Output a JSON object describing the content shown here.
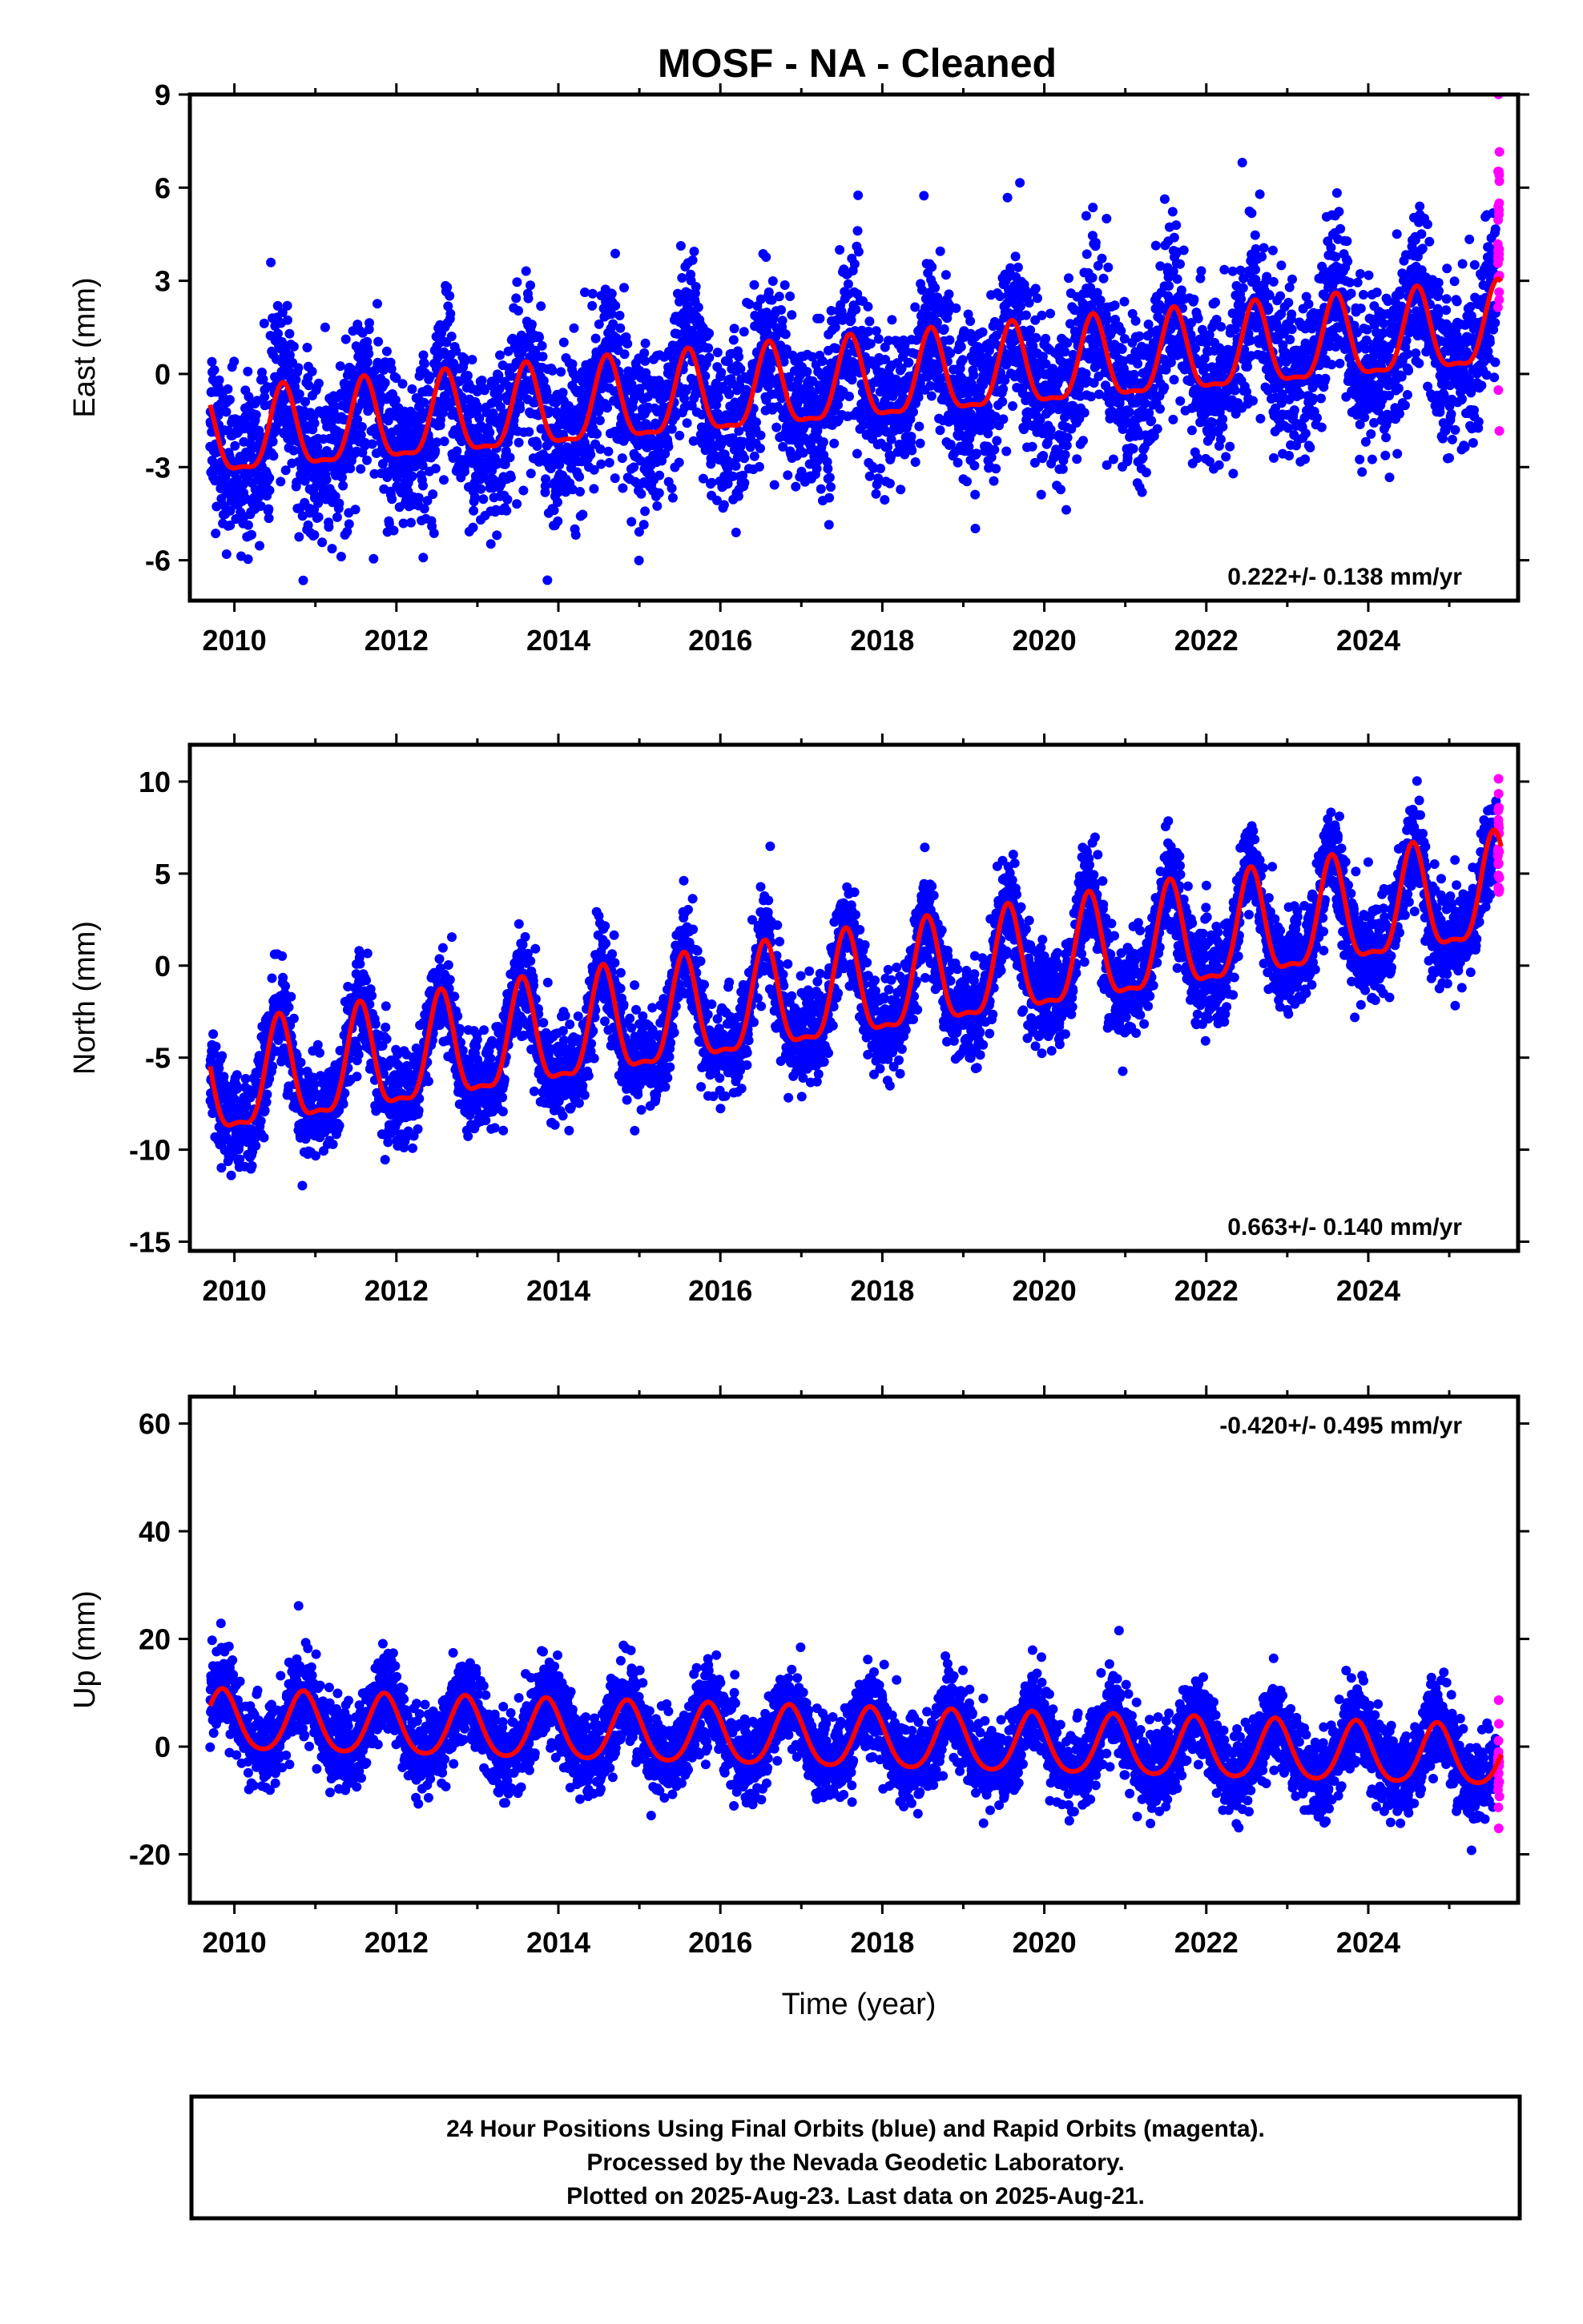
{
  "title": "MOSF  - NA - Cleaned",
  "x_axis_label": "Time (year)",
  "x_ticks": [
    "2010",
    "2012",
    "2014",
    "2016",
    "2018",
    "2020",
    "2022",
    "2024"
  ],
  "footer": {
    "line1": "24 Hour Positions Using Final Orbits (blue) and Rapid Orbits (magenta).",
    "line2": "Processed by the Nevada Geodetic Laboratory.",
    "line3": "Plotted on 2025-Aug-23. Last data on 2025-Aug-21."
  },
  "colors": {
    "final": "#0000ff",
    "rapid": "#ff00ff",
    "model": "#ff0000"
  },
  "chart_data": [
    {
      "type": "scatter",
      "ylabel": "East (mm)",
      "ylim": [
        -7.3,
        9.0
      ],
      "xlim": [
        2009.45,
        2025.85
      ],
      "y_ticks": [
        "9",
        "6",
        "3",
        "0",
        "-3",
        "-6"
      ],
      "y_tick_values": [
        9,
        6,
        3,
        0,
        -3,
        -6
      ],
      "rate_text": "0.222+/- 0.138 mm/yr",
      "data_start": 2009.7,
      "data_end": 2025.64,
      "model": {
        "trend": 0.222,
        "intercept_2017": -0.55,
        "annual_amp": 1.3,
        "annual_peak": 0.6,
        "semiannual_amp": 0.4,
        "noise_sd": 1.3
      },
      "series": [
        {
          "name": "Final Orbits"
        },
        {
          "name": "Rapid Orbits"
        }
      ]
    },
    {
      "type": "scatter",
      "ylabel": "North (mm)",
      "ylim": [
        -15.5,
        12.0
      ],
      "xlim": [
        2009.45,
        2025.85
      ],
      "y_ticks": [
        "10",
        "5",
        "0",
        "-5",
        "-10",
        "-15"
      ],
      "y_tick_values": [
        10,
        5,
        0,
        -5,
        -10,
        -15
      ],
      "rate_text": "0.663+/- 0.140 mm/yr",
      "data_start": 2009.7,
      "data_end": 2025.64,
      "model": {
        "trend": 0.663,
        "intercept_2017": -2.0,
        "annual_amp": 2.8,
        "annual_peak": 0.55,
        "semiannual_amp": 0.9,
        "noise_sd": 1.3
      },
      "series": [
        {
          "name": "Final Orbits"
        },
        {
          "name": "Rapid Orbits"
        }
      ]
    },
    {
      "type": "scatter",
      "ylabel": "Up (mm)",
      "ylim": [
        -29.0,
        65.0
      ],
      "xlim": [
        2009.45,
        2025.85
      ],
      "y_ticks": [
        "60",
        "40",
        "20",
        "0",
        "-20"
      ],
      "y_tick_values": [
        60,
        40,
        20,
        0,
        -20
      ],
      "rate_text": "-0.420+/- 0.495 mm/yr",
      "data_start": 2009.7,
      "data_end": 2025.64,
      "model": {
        "trend": -0.42,
        "intercept_2017": 1.5,
        "annual_amp": 5.5,
        "annual_peak": 0.85,
        "semiannual_amp": 0.8,
        "noise_sd": 3.8
      },
      "series": [
        {
          "name": "Final Orbits"
        },
        {
          "name": "Rapid Orbits"
        }
      ]
    }
  ]
}
